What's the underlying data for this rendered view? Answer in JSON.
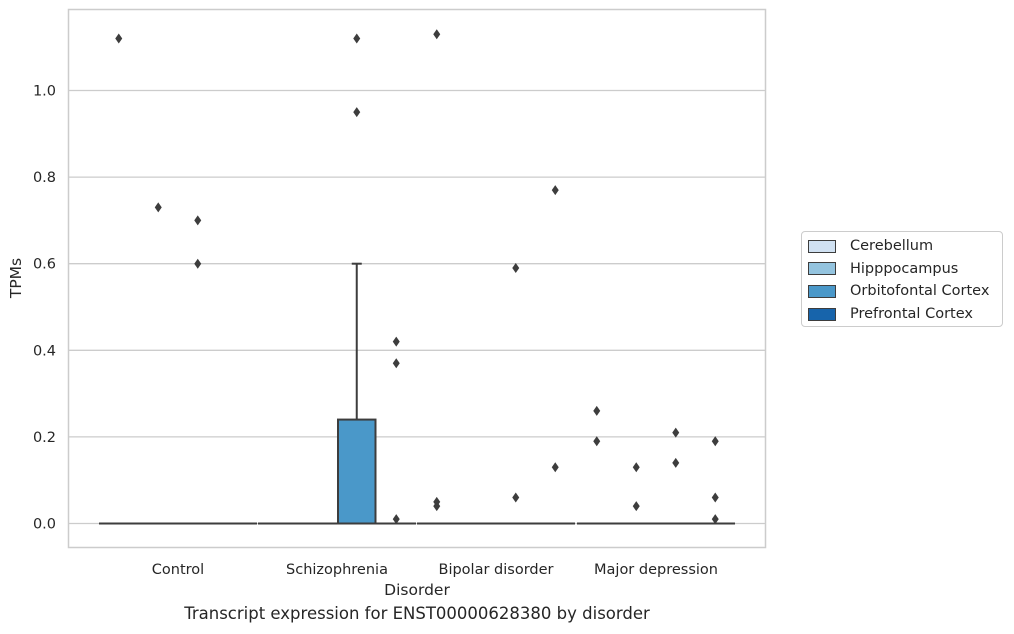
{
  "chart_data": {
    "type": "box",
    "xlabel": "Disorder",
    "ylabel": "TPMs",
    "caption": "Transcript expression for ENST00000628380 by disorder",
    "categories": [
      "Control",
      "Schizophrenia",
      "Bipolar disorder",
      "Major depression"
    ],
    "yticks": [
      0.0,
      0.2,
      0.4,
      0.6,
      0.8,
      1.0
    ],
    "ytick_labels": [
      "0.0",
      "0.2",
      "0.4",
      "0.6",
      "0.8",
      "1.0"
    ],
    "ylim": [
      -0.056,
      1.19
    ],
    "grid": true,
    "legend_position": "right",
    "series": [
      {
        "name": "Cerebellum",
        "color": "#d0e1f2",
        "boxes": [
          {
            "category": "Control",
            "q1": 0,
            "median": 0,
            "q3": 0,
            "whisker_low": 0,
            "whisker_high": 0,
            "outliers": [
              1.12
            ]
          },
          {
            "category": "Schizophrenia",
            "q1": 0,
            "median": 0,
            "q3": 0,
            "whisker_low": 0,
            "whisker_high": 0,
            "outliers": []
          },
          {
            "category": "Bipolar disorder",
            "q1": 0,
            "median": 0,
            "q3": 0,
            "whisker_low": 0,
            "whisker_high": 0,
            "outliers": [
              0.04,
              0.05,
              1.13
            ]
          },
          {
            "category": "Major depression",
            "q1": 0,
            "median": 0,
            "q3": 0,
            "whisker_low": 0,
            "whisker_high": 0,
            "outliers": [
              0.19,
              0.26
            ]
          }
        ]
      },
      {
        "name": "Hipppocampus",
        "color": "#94c4df",
        "boxes": [
          {
            "category": "Control",
            "q1": 0,
            "median": 0,
            "q3": 0,
            "whisker_low": 0,
            "whisker_high": 0,
            "outliers": [
              0.73
            ]
          },
          {
            "category": "Schizophrenia",
            "q1": 0,
            "median": 0,
            "q3": 0,
            "whisker_low": 0,
            "whisker_high": 0,
            "outliers": []
          },
          {
            "category": "Bipolar disorder",
            "q1": 0,
            "median": 0,
            "q3": 0,
            "whisker_low": 0,
            "whisker_high": 0,
            "outliers": []
          },
          {
            "category": "Major depression",
            "q1": 0,
            "median": 0,
            "q3": 0,
            "whisker_low": 0,
            "whisker_high": 0,
            "outliers": [
              0.04,
              0.13
            ]
          }
        ]
      },
      {
        "name": "Orbitofontal Cortex",
        "color": "#4a98c9",
        "boxes": [
          {
            "category": "Control",
            "q1": 0,
            "median": 0,
            "q3": 0,
            "whisker_low": 0,
            "whisker_high": 0,
            "outliers": [
              0.6,
              0.7
            ]
          },
          {
            "category": "Schizophrenia",
            "q1": 0,
            "median": 0,
            "q3": 0.24,
            "whisker_low": 0,
            "whisker_high": 0.6,
            "outliers": [
              0.95,
              1.12
            ]
          },
          {
            "category": "Bipolar disorder",
            "q1": 0,
            "median": 0,
            "q3": 0,
            "whisker_low": 0,
            "whisker_high": 0,
            "outliers": [
              0.06,
              0.59
            ]
          },
          {
            "category": "Major depression",
            "q1": 0,
            "median": 0,
            "q3": 0,
            "whisker_low": 0,
            "whisker_high": 0,
            "outliers": [
              0.14,
              0.21
            ]
          }
        ]
      },
      {
        "name": "Prefrontal Cortex",
        "color": "#1764ab",
        "boxes": [
          {
            "category": "Control",
            "q1": 0,
            "median": 0,
            "q3": 0,
            "whisker_low": 0,
            "whisker_high": 0,
            "outliers": []
          },
          {
            "category": "Schizophrenia",
            "q1": 0,
            "median": 0,
            "q3": 0,
            "whisker_low": 0,
            "whisker_high": 0,
            "outliers": [
              0.01,
              0.37,
              0.42
            ]
          },
          {
            "category": "Bipolar disorder",
            "q1": 0,
            "median": 0,
            "q3": 0,
            "whisker_low": 0,
            "whisker_high": 0,
            "outliers": [
              0.13,
              0.77
            ]
          },
          {
            "category": "Major depression",
            "q1": 0,
            "median": 0,
            "q3": 0,
            "whisker_low": 0,
            "whisker_high": 0,
            "outliers": [
              0.01,
              0.06,
              0.19
            ]
          }
        ]
      }
    ]
  }
}
